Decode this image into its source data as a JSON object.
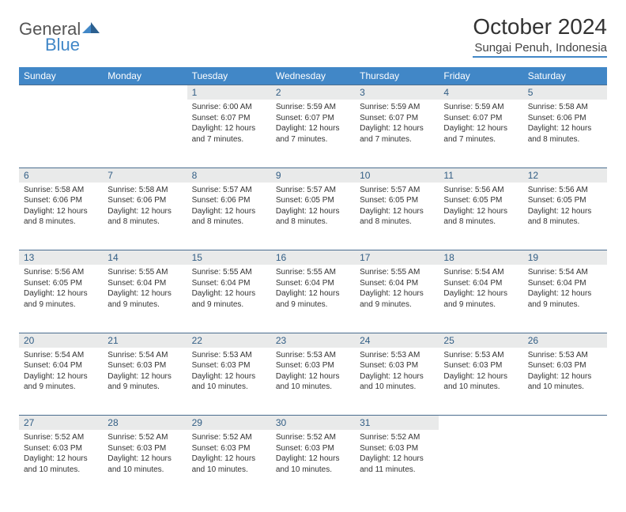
{
  "brand": {
    "word1": "General",
    "word2": "Blue",
    "word1_color": "#777777",
    "word2_color": "#4187c7"
  },
  "title": "October 2024",
  "location": "Sungai Penuh, Indonesia",
  "colors": {
    "header_bg": "#4187c7",
    "header_text": "#ffffff",
    "daynum_bg": "#e9eaea",
    "daynum_text": "#325E85",
    "row_divider": "#4a6d8f",
    "body_text": "#333333",
    "page_bg": "#ffffff"
  },
  "typography": {
    "title_fontsize": 28,
    "location_fontsize": 15,
    "dayheader_fontsize": 12,
    "daynum_fontsize": 12,
    "cell_fontsize": 10
  },
  "dayHeaders": [
    "Sunday",
    "Monday",
    "Tuesday",
    "Wednesday",
    "Thursday",
    "Friday",
    "Saturday"
  ],
  "weeks": [
    [
      null,
      null,
      {
        "n": "1",
        "sunrise": "6:00 AM",
        "sunset": "6:07 PM",
        "daylight": "12 hours and 7 minutes."
      },
      {
        "n": "2",
        "sunrise": "5:59 AM",
        "sunset": "6:07 PM",
        "daylight": "12 hours and 7 minutes."
      },
      {
        "n": "3",
        "sunrise": "5:59 AM",
        "sunset": "6:07 PM",
        "daylight": "12 hours and 7 minutes."
      },
      {
        "n": "4",
        "sunrise": "5:59 AM",
        "sunset": "6:07 PM",
        "daylight": "12 hours and 7 minutes."
      },
      {
        "n": "5",
        "sunrise": "5:58 AM",
        "sunset": "6:06 PM",
        "daylight": "12 hours and 8 minutes."
      }
    ],
    [
      {
        "n": "6",
        "sunrise": "5:58 AM",
        "sunset": "6:06 PM",
        "daylight": "12 hours and 8 minutes."
      },
      {
        "n": "7",
        "sunrise": "5:58 AM",
        "sunset": "6:06 PM",
        "daylight": "12 hours and 8 minutes."
      },
      {
        "n": "8",
        "sunrise": "5:57 AM",
        "sunset": "6:06 PM",
        "daylight": "12 hours and 8 minutes."
      },
      {
        "n": "9",
        "sunrise": "5:57 AM",
        "sunset": "6:05 PM",
        "daylight": "12 hours and 8 minutes."
      },
      {
        "n": "10",
        "sunrise": "5:57 AM",
        "sunset": "6:05 PM",
        "daylight": "12 hours and 8 minutes."
      },
      {
        "n": "11",
        "sunrise": "5:56 AM",
        "sunset": "6:05 PM",
        "daylight": "12 hours and 8 minutes."
      },
      {
        "n": "12",
        "sunrise": "5:56 AM",
        "sunset": "6:05 PM",
        "daylight": "12 hours and 8 minutes."
      }
    ],
    [
      {
        "n": "13",
        "sunrise": "5:56 AM",
        "sunset": "6:05 PM",
        "daylight": "12 hours and 9 minutes."
      },
      {
        "n": "14",
        "sunrise": "5:55 AM",
        "sunset": "6:04 PM",
        "daylight": "12 hours and 9 minutes."
      },
      {
        "n": "15",
        "sunrise": "5:55 AM",
        "sunset": "6:04 PM",
        "daylight": "12 hours and 9 minutes."
      },
      {
        "n": "16",
        "sunrise": "5:55 AM",
        "sunset": "6:04 PM",
        "daylight": "12 hours and 9 minutes."
      },
      {
        "n": "17",
        "sunrise": "5:55 AM",
        "sunset": "6:04 PM",
        "daylight": "12 hours and 9 minutes."
      },
      {
        "n": "18",
        "sunrise": "5:54 AM",
        "sunset": "6:04 PM",
        "daylight": "12 hours and 9 minutes."
      },
      {
        "n": "19",
        "sunrise": "5:54 AM",
        "sunset": "6:04 PM",
        "daylight": "12 hours and 9 minutes."
      }
    ],
    [
      {
        "n": "20",
        "sunrise": "5:54 AM",
        "sunset": "6:04 PM",
        "daylight": "12 hours and 9 minutes."
      },
      {
        "n": "21",
        "sunrise": "5:54 AM",
        "sunset": "6:03 PM",
        "daylight": "12 hours and 9 minutes."
      },
      {
        "n": "22",
        "sunrise": "5:53 AM",
        "sunset": "6:03 PM",
        "daylight": "12 hours and 10 minutes."
      },
      {
        "n": "23",
        "sunrise": "5:53 AM",
        "sunset": "6:03 PM",
        "daylight": "12 hours and 10 minutes."
      },
      {
        "n": "24",
        "sunrise": "5:53 AM",
        "sunset": "6:03 PM",
        "daylight": "12 hours and 10 minutes."
      },
      {
        "n": "25",
        "sunrise": "5:53 AM",
        "sunset": "6:03 PM",
        "daylight": "12 hours and 10 minutes."
      },
      {
        "n": "26",
        "sunrise": "5:53 AM",
        "sunset": "6:03 PM",
        "daylight": "12 hours and 10 minutes."
      }
    ],
    [
      {
        "n": "27",
        "sunrise": "5:52 AM",
        "sunset": "6:03 PM",
        "daylight": "12 hours and 10 minutes."
      },
      {
        "n": "28",
        "sunrise": "5:52 AM",
        "sunset": "6:03 PM",
        "daylight": "12 hours and 10 minutes."
      },
      {
        "n": "29",
        "sunrise": "5:52 AM",
        "sunset": "6:03 PM",
        "daylight": "12 hours and 10 minutes."
      },
      {
        "n": "30",
        "sunrise": "5:52 AM",
        "sunset": "6:03 PM",
        "daylight": "12 hours and 10 minutes."
      },
      {
        "n": "31",
        "sunrise": "5:52 AM",
        "sunset": "6:03 PM",
        "daylight": "12 hours and 11 minutes."
      },
      null,
      null
    ]
  ],
  "labels": {
    "sunrise": "Sunrise: ",
    "sunset": "Sunset: ",
    "daylight": "Daylight: "
  }
}
